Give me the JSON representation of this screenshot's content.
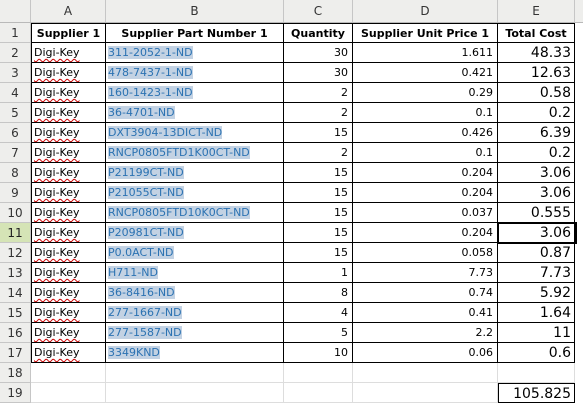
{
  "spreadsheet": {
    "columns": [
      "A",
      "B",
      "C",
      "D",
      "E"
    ],
    "headers": [
      "Supplier 1",
      "Supplier Part Number 1",
      "Quantity",
      "Supplier Unit Price 1",
      "Total Cost"
    ],
    "rows": [
      {
        "num": "2",
        "supplier": "Digi-Key",
        "part": "311-2052-1-ND",
        "qty": "30",
        "price": "1.611",
        "total": "48.33"
      },
      {
        "num": "3",
        "supplier": "Digi-Key",
        "part": "478-7437-1-ND",
        "qty": "30",
        "price": "0.421",
        "total": "12.63"
      },
      {
        "num": "4",
        "supplier": "Digi-Key",
        "part": "160-1423-1-ND",
        "qty": "2",
        "price": "0.29",
        "total": "0.58"
      },
      {
        "num": "5",
        "supplier": "Digi-Key",
        "part": "36-4701-ND",
        "qty": "2",
        "price": "0.1",
        "total": "0.2"
      },
      {
        "num": "6",
        "supplier": "Digi-Key",
        "part": "DXT3904-13DICT-ND",
        "qty": "15",
        "price": "0.426",
        "total": "6.39"
      },
      {
        "num": "7",
        "supplier": "Digi-Key",
        "part": "RNCP0805FTD1K00CT-ND",
        "qty": "2",
        "price": "0.1",
        "total": "0.2"
      },
      {
        "num": "8",
        "supplier": "Digi-Key",
        "part": "P21199CT-ND",
        "qty": "15",
        "price": "0.204",
        "total": "3.06"
      },
      {
        "num": "9",
        "supplier": "Digi-Key",
        "part": "P21055CT-ND",
        "qty": "15",
        "price": "0.204",
        "total": "3.06"
      },
      {
        "num": "10",
        "supplier": "Digi-Key",
        "part": "RNCP0805FTD10K0CT-ND",
        "qty": "15",
        "price": "0.037",
        "total": "0.555"
      },
      {
        "num": "11",
        "supplier": "Digi-Key",
        "part": "P20981CT-ND",
        "qty": "15",
        "price": "0.204",
        "total": "3.06"
      },
      {
        "num": "12",
        "supplier": "Digi-Key",
        "part": "P0.0ACT-ND",
        "qty": "15",
        "price": "0.058",
        "total": "0.87"
      },
      {
        "num": "13",
        "supplier": "Digi-Key",
        "part": "H711-ND",
        "qty": "1",
        "price": "7.73",
        "total": "7.73"
      },
      {
        "num": "14",
        "supplier": "Digi-Key",
        "part": "36-8416-ND",
        "qty": "8",
        "price": "0.74",
        "total": "5.92"
      },
      {
        "num": "15",
        "supplier": "Digi-Key",
        "part": "277-1667-ND",
        "qty": "4",
        "price": "0.41",
        "total": "1.64"
      },
      {
        "num": "16",
        "supplier": "Digi-Key",
        "part": "277-1587-ND",
        "qty": "5",
        "price": "2.2",
        "total": "11"
      },
      {
        "num": "17",
        "supplier": "Digi-Key",
        "part": "3349KND",
        "qty": "10",
        "price": "0.06",
        "total": "0.6"
      }
    ],
    "row18": "18",
    "row19": "19",
    "grand_total": "105.825",
    "header_row_num": "1",
    "active_row": "11"
  }
}
